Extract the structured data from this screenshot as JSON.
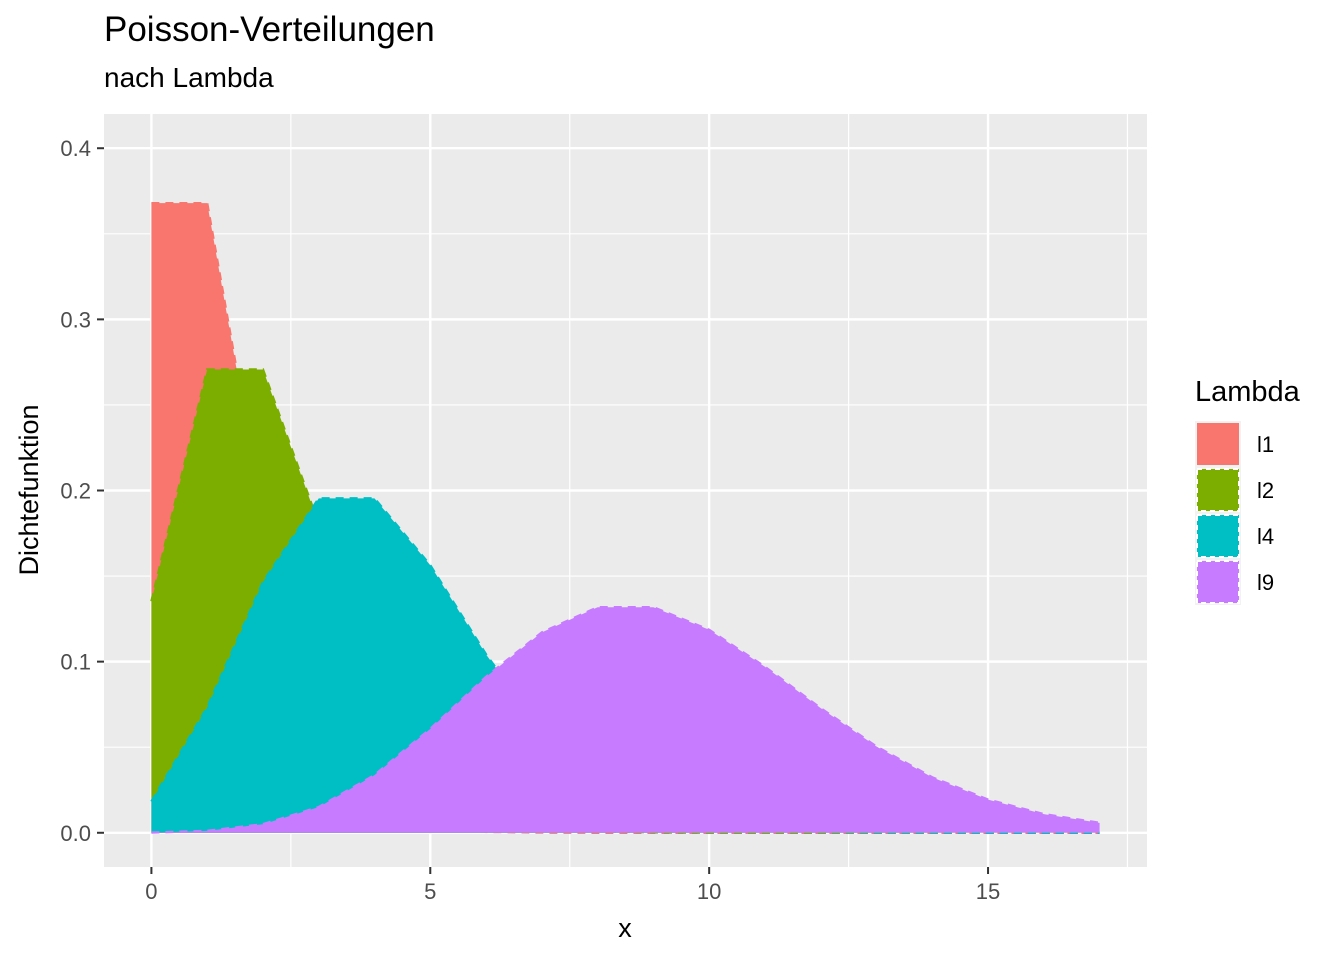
{
  "chart_data": {
    "type": "area",
    "title": "Poisson-Verteilungen",
    "subtitle": "nach Lambda",
    "xlabel": "x",
    "ylabel": "Dichtefunktion",
    "xlim": [
      -0.85,
      17.85
    ],
    "ylim": [
      -0.02,
      0.42
    ],
    "x_ticks": [
      0,
      5,
      10,
      15
    ],
    "x_tick_labels": [
      "0",
      "5",
      "10",
      "15"
    ],
    "y_ticks": [
      0.0,
      0.1,
      0.2,
      0.3,
      0.4
    ],
    "y_tick_labels": [
      "0.0",
      "0.1",
      "0.2",
      "0.3",
      "0.4"
    ],
    "grid": true,
    "legend": {
      "title": "Lambda",
      "position": "right"
    },
    "x": [
      0,
      1,
      2,
      3,
      4,
      5,
      6,
      7,
      8,
      9,
      10,
      11,
      12,
      13,
      14,
      15,
      16,
      17
    ],
    "series": [
      {
        "name": "l1",
        "color": "#F8766D",
        "values": [
          0.3679,
          0.3679,
          0.1839,
          0.0613,
          0.0153,
          0.0031,
          0.0005,
          0.0001,
          0.0,
          0.0,
          0.0,
          0.0,
          0.0,
          0.0,
          0.0,
          0.0,
          0.0,
          0.0
        ]
      },
      {
        "name": "l2",
        "color": "#7CAE00",
        "values": [
          0.1353,
          0.2707,
          0.2707,
          0.1804,
          0.0902,
          0.0361,
          0.012,
          0.0034,
          0.0009,
          0.0002,
          0.0,
          0.0,
          0.0,
          0.0,
          0.0,
          0.0,
          0.0,
          0.0
        ]
      },
      {
        "name": "l4",
        "color": "#00BFC4",
        "values": [
          0.0183,
          0.0733,
          0.1465,
          0.1954,
          0.1954,
          0.1563,
          0.1042,
          0.0595,
          0.0298,
          0.0132,
          0.0053,
          0.0019,
          0.0006,
          0.0002,
          0.0001,
          0.0,
          0.0,
          0.0
        ]
      },
      {
        "name": "l9",
        "color": "#C77CFF",
        "values": [
          0.0001,
          0.0011,
          0.005,
          0.015,
          0.0337,
          0.0607,
          0.0911,
          0.1171,
          0.1318,
          0.1318,
          0.1186,
          0.097,
          0.0728,
          0.0504,
          0.0324,
          0.0194,
          0.0109,
          0.0058
        ]
      }
    ]
  }
}
